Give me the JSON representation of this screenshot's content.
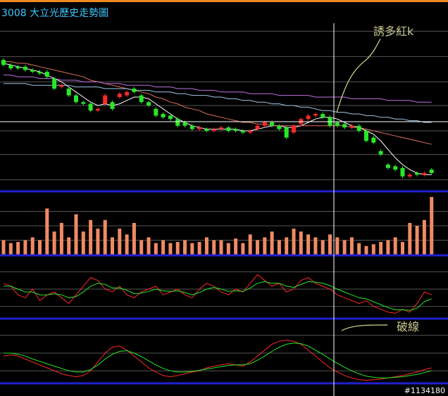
{
  "title": "3008  大立光歷史走勢圖",
  "annotations": [
    "誘多紅k",
    "破線"
  ],
  "footer": "#1134180",
  "chart_data": [
    {
      "type": "candlestick",
      "ylim": [
        0,
        100
      ],
      "yticks": [
        6,
        21,
        35,
        50,
        64,
        79,
        94
      ],
      "grid": true,
      "up_color": "#ff2828",
      "down_color": "#28e628",
      "open": [
        77,
        74,
        73,
        73,
        71,
        70,
        70,
        66,
        61,
        60,
        56,
        52,
        51,
        47,
        51,
        52,
        55,
        56,
        60,
        56,
        52,
        48,
        45,
        44,
        42,
        40,
        38,
        36,
        36,
        35,
        36,
        37,
        36,
        35,
        34,
        36,
        38,
        40,
        38,
        37,
        34,
        39,
        42,
        44,
        45,
        43,
        40,
        39,
        37,
        38,
        35,
        31,
        23,
        15,
        14,
        13,
        8,
        10,
        9,
        12
      ],
      "high": [
        78,
        75,
        74,
        74,
        72,
        71,
        71,
        67,
        63,
        61,
        57,
        53,
        52,
        49,
        57,
        53,
        58,
        59,
        61,
        57,
        53,
        49,
        46,
        45,
        43,
        41,
        39,
        38,
        37,
        37,
        38,
        38,
        37,
        36,
        36,
        39,
        41,
        41,
        39,
        38,
        39,
        43,
        45,
        46,
        46,
        44,
        41,
        40,
        39,
        39,
        36,
        32,
        24,
        16,
        15,
        14,
        10,
        11,
        11,
        13
      ],
      "low": [
        73,
        71,
        71,
        70,
        69,
        68,
        66,
        59,
        60,
        55,
        51,
        50,
        46,
        46,
        50,
        47,
        54,
        55,
        57,
        51,
        49,
        43,
        42,
        41,
        37,
        37,
        35,
        35,
        34,
        34,
        35,
        34,
        34,
        33,
        33,
        35,
        37,
        37,
        35,
        30,
        33,
        38,
        41,
        43,
        42,
        37,
        37,
        36,
        36,
        34,
        28,
        27,
        20,
        12,
        11,
        7,
        7,
        8,
        8,
        9
      ],
      "close": [
        74,
        72,
        72,
        71,
        70,
        69,
        67,
        60,
        62,
        56,
        52,
        51,
        47,
        48,
        56,
        48,
        57,
        58,
        58,
        52,
        50,
        44,
        43,
        42,
        38,
        38,
        36,
        37,
        35,
        36,
        37,
        35,
        35,
        34,
        35,
        38,
        40,
        38,
        36,
        31,
        38,
        42,
        44,
        45,
        43,
        38,
        38,
        37,
        38,
        35,
        29,
        28,
        21,
        13,
        12,
        8,
        9,
        9,
        10,
        10
      ],
      "lines": [
        {
          "color": "#ffffff",
          "values": [
            75,
            74,
            73,
            72,
            71,
            70,
            68,
            66,
            64,
            61,
            58,
            55,
            52,
            50,
            51,
            50,
            51,
            53,
            55,
            55,
            54,
            51,
            48,
            45,
            42,
            40,
            38,
            37,
            36,
            36,
            36,
            36,
            36,
            35,
            35,
            36,
            37,
            38,
            38,
            37,
            37,
            38,
            40,
            42,
            43,
            43,
            42,
            40,
            38,
            37,
            35,
            33,
            29,
            24,
            19,
            15,
            12,
            10,
            9,
            9
          ]
        },
        {
          "color": "#e07060",
          "values": [
            76,
            76,
            75,
            75,
            74,
            73,
            72,
            71,
            70,
            69,
            68,
            67,
            65,
            64,
            63,
            62,
            61,
            60,
            59,
            58,
            57,
            55,
            54,
            52,
            51,
            49,
            48,
            47,
            45,
            44,
            43,
            42,
            41,
            40,
            40,
            39,
            39,
            38,
            38,
            38,
            38,
            38,
            38,
            38,
            38,
            38,
            38,
            38,
            37,
            37,
            36,
            35,
            34,
            33,
            32,
            31,
            30,
            29,
            28,
            27
          ]
        },
        {
          "color": "#c070e0",
          "values": [
            68,
            68,
            67,
            67,
            67,
            66,
            66,
            66,
            65,
            65,
            65,
            64,
            64,
            64,
            63,
            63,
            63,
            62,
            62,
            62,
            62,
            61,
            61,
            61,
            60,
            60,
            60,
            59,
            59,
            59,
            58,
            58,
            58,
            58,
            57,
            57,
            57,
            57,
            56,
            56,
            56,
            56,
            56,
            55,
            55,
            55,
            55,
            55,
            54,
            54,
            54,
            54,
            54,
            53,
            53,
            53,
            53,
            52,
            52,
            52
          ]
        },
        {
          "color": "#a0c8e8",
          "values": [
            63,
            63,
            63,
            63,
            62,
            62,
            62,
            62,
            62,
            62,
            61,
            61,
            61,
            61,
            60,
            60,
            60,
            60,
            59,
            59,
            59,
            58,
            58,
            58,
            57,
            57,
            56,
            56,
            56,
            55,
            55,
            54,
            54,
            53,
            53,
            52,
            52,
            51,
            51,
            50,
            50,
            49,
            49,
            48,
            47,
            47,
            46,
            46,
            45,
            45,
            44,
            44,
            43,
            43,
            42,
            42,
            41,
            41,
            40,
            40
          ]
        }
      ]
    },
    {
      "type": "bar",
      "ylim": [
        0,
        100
      ],
      "yticks": [
        25,
        50,
        75
      ],
      "grid": true,
      "color": "#f08a64",
      "values": [
        25,
        20,
        22,
        25,
        30,
        25,
        80,
        40,
        55,
        30,
        70,
        40,
        60,
        45,
        60,
        30,
        45,
        35,
        55,
        25,
        30,
        20,
        25,
        20,
        22,
        25,
        20,
        22,
        30,
        25,
        25,
        20,
        28,
        20,
        35,
        25,
        30,
        40,
        25,
        30,
        45,
        40,
        35,
        30,
        25,
        35,
        30,
        25,
        30,
        20,
        15,
        18,
        22,
        25,
        30,
        22,
        55,
        50,
        60,
        100
      ]
    },
    {
      "type": "line",
      "ylim": [
        0,
        100
      ],
      "yticks": [
        20,
        50,
        80
      ],
      "grid": true,
      "series": [
        {
          "color": "#ff2828",
          "values": [
            60,
            55,
            40,
            35,
            50,
            30,
            40,
            45,
            35,
            25,
            40,
            55,
            70,
            65,
            50,
            45,
            55,
            40,
            35,
            45,
            50,
            55,
            40,
            45,
            50,
            40,
            35,
            50,
            60,
            55,
            45,
            40,
            50,
            45,
            60,
            75,
            65,
            55,
            60,
            45,
            50,
            65,
            70,
            60,
            55,
            50,
            40,
            35,
            30,
            25,
            30,
            20,
            15,
            10,
            8,
            15,
            10,
            25,
            45,
            40
          ]
        },
        {
          "color": "#28e628",
          "values": [
            55,
            55,
            50,
            45,
            45,
            40,
            40,
            42,
            40,
            35,
            37,
            45,
            55,
            60,
            58,
            52,
            52,
            48,
            42,
            43,
            46,
            50,
            47,
            46,
            47,
            44,
            40,
            44,
            50,
            53,
            50,
            46,
            47,
            46,
            52,
            60,
            63,
            60,
            60,
            55,
            53,
            58,
            63,
            62,
            60,
            56,
            50,
            45,
            40,
            35,
            33,
            28,
            23,
            18,
            14,
            14,
            13,
            17,
            28,
            33
          ]
        }
      ]
    },
    {
      "type": "line",
      "ylim": [
        0,
        100
      ],
      "yticks": [
        20,
        50,
        80
      ],
      "grid": true,
      "series": [
        {
          "color": "#ff2828",
          "values": [
            45,
            47,
            45,
            40,
            35,
            30,
            25,
            20,
            15,
            12,
            10,
            12,
            20,
            35,
            50,
            60,
            62,
            55,
            45,
            35,
            25,
            18,
            12,
            10,
            12,
            15,
            18,
            20,
            25,
            28,
            30,
            32,
            30,
            28,
            35,
            45,
            55,
            65,
            70,
            72,
            70,
            65,
            55,
            45,
            35,
            25,
            18,
            12,
            8,
            5,
            4,
            5,
            6,
            8,
            10,
            12,
            15,
            18,
            22,
            25
          ]
        },
        {
          "color": "#28e628",
          "values": [
            50,
            50,
            48,
            45,
            40,
            36,
            32,
            28,
            24,
            20,
            18,
            18,
            22,
            30,
            40,
            48,
            53,
            54,
            50,
            44,
            37,
            30,
            24,
            20,
            18,
            18,
            19,
            21,
            23,
            25,
            27,
            29,
            30,
            30,
            32,
            38,
            45,
            53,
            60,
            65,
            67,
            66,
            62,
            55,
            48,
            40,
            33,
            26,
            20,
            15,
            11,
            9,
            8,
            8,
            9,
            10,
            12,
            14,
            17,
            20
          ]
        }
      ]
    }
  ]
}
